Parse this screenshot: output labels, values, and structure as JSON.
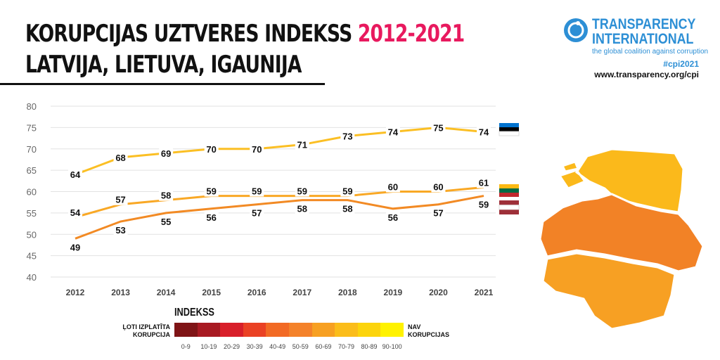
{
  "header": {
    "title_line1": "KORUPCIJAS UZTVERES INDEKSS",
    "title_years": "2012-2021",
    "title_line2": "LATVIJA, LIETUVA, IGAUNIJA"
  },
  "logo": {
    "name_line1": "TRANSPARENCY",
    "name_line2": "INTERNATIONAL",
    "tagline": "the global coalition against corruption",
    "hashtag": "#cpi2021",
    "url": "www.transparency.org/cpi"
  },
  "chart_data": {
    "type": "line",
    "x": [
      2012,
      2013,
      2014,
      2015,
      2016,
      2017,
      2018,
      2019,
      2020,
      2021
    ],
    "ylim": [
      40,
      80
    ],
    "yticks": [
      40,
      45,
      50,
      55,
      60,
      65,
      70,
      75,
      80
    ],
    "grid": true,
    "series": [
      {
        "country": "Estonia",
        "color": "#fbbf24",
        "flag": [
          "#0072ce",
          "#000000",
          "#ffffff"
        ],
        "values": [
          64,
          68,
          69,
          70,
          70,
          71,
          73,
          74,
          75,
          74
        ]
      },
      {
        "country": "Lithuania",
        "color": "#f9a825",
        "flag": [
          "#fdb913",
          "#006a44",
          "#c1272d"
        ],
        "values": [
          54,
          57,
          58,
          59,
          59,
          59,
          59,
          60,
          60,
          61
        ]
      },
      {
        "country": "Latvia",
        "color": "#f28a24",
        "flag": [
          "#9e3039",
          "#ffffff",
          "#9e3039"
        ],
        "values": [
          49,
          53,
          55,
          56,
          57,
          58,
          58,
          56,
          57,
          59
        ]
      }
    ]
  },
  "legend": {
    "title": "INDEKSS",
    "left_label": "ĻOTI IZPLATĪTA KORUPCIJA",
    "right_label": "NAV KORUPCIJAS",
    "ranges": [
      "0-9",
      "10-19",
      "20-29",
      "30-39",
      "40-49",
      "50-59",
      "60-69",
      "70-79",
      "80-89",
      "90-100"
    ],
    "colors": [
      "#7f1416",
      "#a81a22",
      "#d81f2a",
      "#ea4124",
      "#f26a24",
      "#f4822a",
      "#f7a022",
      "#fbbd1a",
      "#fcd40c",
      "#fff200"
    ]
  },
  "map": {
    "estonia_color": "#fbb91b",
    "latvia_color": "#f28226",
    "lithuania_color": "#f7a023"
  }
}
